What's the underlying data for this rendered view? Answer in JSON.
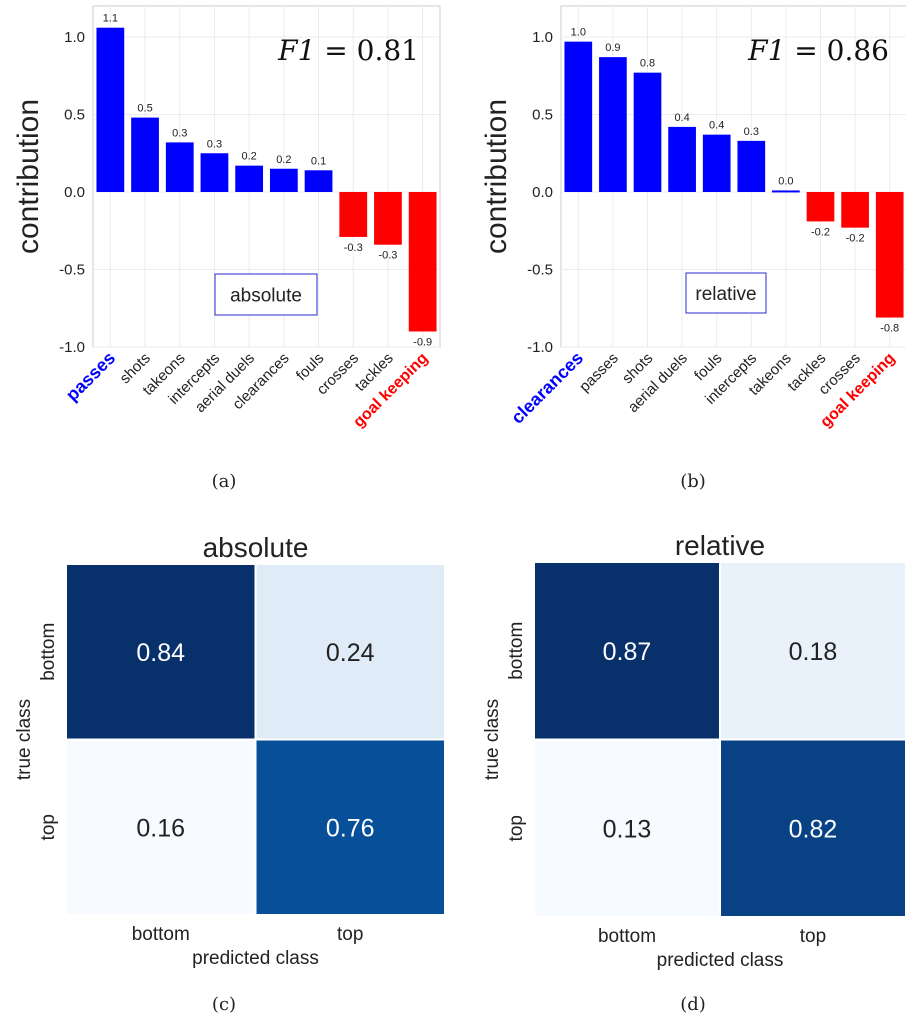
{
  "chart_data": [
    {
      "id": "a",
      "type": "bar",
      "caption": "(a)",
      "ylabel": "contribution",
      "ylim": [
        -1.0,
        1.2
      ],
      "yticks": [
        "1.0",
        "0.5",
        "0.0",
        "-0.5",
        "-1.0"
      ],
      "ytick_values": [
        1.0,
        0.5,
        0.0,
        -0.5,
        -1.0
      ],
      "grid": true,
      "annotation": "F1 = 0.81",
      "annotation_lhs": "F1",
      "annotation_rhs": "0.81",
      "legend_box": "absolute",
      "categories": [
        "passes",
        "shots",
        "takeons",
        "intercepts",
        "aerial duels",
        "clearances",
        "fouls",
        "crosses",
        "tackles",
        "goal keeping"
      ],
      "values": [
        1.06,
        0.48,
        0.32,
        0.25,
        0.17,
        0.15,
        0.14,
        -0.29,
        -0.34,
        -0.9
      ],
      "value_labels": [
        "1.1",
        "0.5",
        "0.3",
        "0.3",
        "0.2",
        "0.2",
        "0.1",
        "-0.3",
        "-0.3",
        "-0.9"
      ],
      "colors": {
        "positive": "#0000ff",
        "negative": "#ff0000"
      },
      "highlight": {
        "first": "#0000ff",
        "last": "#ff0000"
      }
    },
    {
      "id": "b",
      "type": "bar",
      "caption": "(b)",
      "ylabel": "contribution",
      "ylim": [
        -1.0,
        1.2
      ],
      "yticks": [
        "1.0",
        "0.5",
        "0.0",
        "-0.5",
        "-1.0"
      ],
      "ytick_values": [
        1.0,
        0.5,
        0.0,
        -0.5,
        -1.0
      ],
      "grid": true,
      "annotation": "F1 = 0.86",
      "annotation_lhs": "F1",
      "annotation_rhs": "0.86",
      "legend_box": "relative",
      "categories": [
        "clearances",
        "passes",
        "shots",
        "aerial duels",
        "fouls",
        "intercepts",
        "takeons",
        "tackles",
        "crosses",
        "goal keeping"
      ],
      "values": [
        0.97,
        0.87,
        0.77,
        0.42,
        0.37,
        0.33,
        0.01,
        -0.19,
        -0.23,
        -0.81
      ],
      "value_labels": [
        "1.0",
        "0.9",
        "0.8",
        "0.4",
        "0.4",
        "0.3",
        "0.0",
        "-0.2",
        "-0.2",
        "-0.8"
      ],
      "colors": {
        "positive": "#0000ff",
        "negative": "#ff0000"
      },
      "highlight": {
        "first": "#0000ff",
        "last": "#ff0000"
      }
    },
    {
      "id": "c",
      "type": "heatmap",
      "caption": "(c)",
      "title": "absolute",
      "xlabel": "predicted class",
      "ylabel": "true class",
      "x_categories": [
        "bottom",
        "top"
      ],
      "y_categories": [
        "bottom",
        "top"
      ],
      "values": [
        [
          0.84,
          0.24
        ],
        [
          0.16,
          0.76
        ]
      ],
      "value_labels": [
        [
          "0.84",
          "0.24"
        ],
        [
          "0.16",
          "0.76"
        ]
      ],
      "colormap": "Blues"
    },
    {
      "id": "d",
      "type": "heatmap",
      "caption": "(d)",
      "title": "relative",
      "xlabel": "predicted class",
      "ylabel": "true class",
      "x_categories": [
        "bottom",
        "top"
      ],
      "y_categories": [
        "bottom",
        "top"
      ],
      "values": [
        [
          0.87,
          0.18
        ],
        [
          0.13,
          0.82
        ]
      ],
      "value_labels": [
        [
          "0.87",
          "0.18"
        ],
        [
          "0.13",
          "0.82"
        ]
      ],
      "colormap": "Blues"
    }
  ]
}
